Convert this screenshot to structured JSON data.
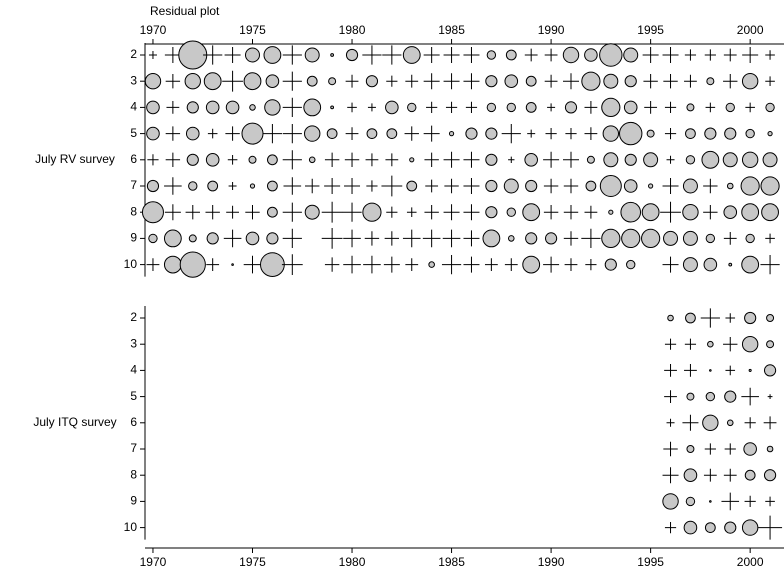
{
  "chart_data": {
    "type": "bubble",
    "title": "Residual plot",
    "xlim": [
      1969.6,
      2001.7
    ],
    "xticks": [
      1970,
      1975,
      1980,
      1985,
      1990,
      1995,
      2000
    ],
    "positive_color": "#c8c8c8",
    "panels": [
      {
        "label": "July RV survey",
        "categories": [
          2,
          3,
          4,
          5,
          6,
          7,
          8,
          9,
          10
        ],
        "x": [
          1970,
          1971,
          1972,
          1973,
          1974,
          1975,
          1976,
          1977,
          1978,
          1979,
          1980,
          1981,
          1982,
          1983,
          1984,
          1985,
          1986,
          1987,
          1988,
          1989,
          1990,
          1991,
          1992,
          1993,
          1994,
          1995,
          1996,
          1997,
          1998,
          1999,
          2000,
          2001
        ],
        "values": [
          [
            -0.5,
            -1,
            2,
            -1.2,
            -1,
            1,
            1.2,
            -1.2,
            1,
            0.2,
            0.8,
            -1.2,
            -1.2,
            1.2,
            -1,
            -1,
            -1,
            0.6,
            0.7,
            -0.8,
            -0.8,
            1.1,
            0.9,
            1.6,
            1,
            -1,
            -1,
            -0.7,
            -0.7,
            -0.8,
            -1,
            -0.6
          ],
          [
            1.1,
            -0.9,
            1.1,
            1.2,
            -1.3,
            1.2,
            0.9,
            -1.2,
            0.7,
            0.5,
            -0.8,
            0.8,
            -0.7,
            -0.8,
            -1,
            -1,
            -1,
            0.8,
            0.9,
            0.7,
            -0.8,
            -1,
            1.3,
            1,
            0.8,
            -0.9,
            -0.9,
            -0.8,
            0.5,
            -0.9,
            1.1,
            -0.6
          ],
          [
            0.9,
            -0.8,
            0.8,
            0.9,
            0.9,
            0.4,
            1.1,
            -1.2,
            1.2,
            0.2,
            -0.6,
            -0.5,
            0.9,
            0.6,
            -0.7,
            -0.7,
            -0.7,
            0.6,
            0.6,
            0.7,
            -0.5,
            0.8,
            -0.8,
            1.3,
            0.9,
            -0.8,
            -0.7,
            0.5,
            -0.6,
            0.6,
            -0.6,
            0.6
          ],
          [
            0.9,
            -0.9,
            0.9,
            -0.6,
            -0.9,
            1.5,
            -1.2,
            -1.2,
            1.1,
            0.7,
            -0.8,
            0.7,
            0.7,
            -0.9,
            -1,
            0.3,
            0.8,
            0.8,
            -1.2,
            -0.5,
            -0.7,
            -0.7,
            -0.8,
            1.1,
            1.6,
            0.5,
            -0.7,
            0.7,
            0.8,
            0.8,
            0.6,
            0.3
          ],
          [
            -0.7,
            -0.9,
            0.8,
            0.9,
            -0.6,
            0.5,
            0.7,
            -1.2,
            0.4,
            -0.9,
            -0.9,
            -0.8,
            -0.8,
            0.3,
            -0.9,
            -1,
            -1,
            0.8,
            -0.4,
            0.9,
            -1,
            -1,
            0.5,
            1,
            0.8,
            1,
            -0.5,
            0.6,
            1.2,
            1,
            1.1,
            1
          ],
          [
            0.8,
            -1.1,
            0.6,
            0.7,
            -0.5,
            0.3,
            0.7,
            -1.1,
            -0.9,
            -1,
            -1,
            -0.7,
            -1.3,
            0.7,
            -0.8,
            -0.9,
            -1,
            0.8,
            1,
            0.8,
            -0.9,
            -0.9,
            0.7,
            1.5,
            0.9,
            0.3,
            -1,
            1,
            -0.9,
            0.4,
            1.3,
            1.3
          ],
          [
            1.5,
            -1,
            -0.9,
            -0.9,
            -0.8,
            -0.9,
            0.7,
            -1.2,
            1,
            -1.3,
            -1.2,
            1.3,
            -0.7,
            -0.6,
            -0.9,
            -1,
            -1,
            0.8,
            0.6,
            1.2,
            -0.9,
            -0.9,
            -0.8,
            0.3,
            1.4,
            1.2,
            -1.3,
            1.1,
            -0.9,
            0.9,
            1.2,
            1.2
          ],
          [
            0.6,
            1.2,
            0.5,
            0.8,
            -1.1,
            0.9,
            0.8,
            -1.2,
            null,
            -1.3,
            -1.1,
            -0.9,
            -0.9,
            -1.1,
            -1.1,
            -1.1,
            -1,
            1.2,
            0.4,
            0.8,
            0.8,
            -0.9,
            -1.2,
            1.3,
            1.3,
            1.3,
            1,
            1,
            0.6,
            -0.8,
            0.6,
            -0.6
          ],
          [
            -0.8,
            1.2,
            1.8,
            -0.8,
            0.1,
            -1.1,
            1.7,
            -1.3,
            null,
            -0.9,
            -1.1,
            -1.1,
            -1,
            -0.8,
            0.4,
            -1.2,
            -1,
            -0.8,
            -0.8,
            1.2,
            -1,
            -0.8,
            -0.7,
            0.8,
            0.6,
            null,
            -1,
            1,
            0.9,
            0.2,
            1.2,
            -1.2
          ]
        ]
      },
      {
        "label": "July ITQ survey",
        "categories": [
          2,
          3,
          4,
          5,
          6,
          7,
          8,
          9,
          10
        ],
        "x": [
          1996,
          1997,
          1998,
          1999,
          2000,
          2001
        ],
        "values": [
          [
            0.4,
            0.7,
            -1.2,
            -0.6,
            0.8,
            0.5
          ],
          [
            -0.7,
            -0.7,
            0.4,
            -0.9,
            1.1,
            0.5
          ],
          [
            -0.8,
            -0.8,
            0.1,
            -0.6,
            0.15,
            0.8
          ],
          [
            -0.8,
            0.5,
            0.6,
            0.8,
            -1.1,
            -0.3
          ],
          [
            -0.5,
            -1,
            1.1,
            0.4,
            -0.7,
            -0.8
          ],
          [
            -0.9,
            0.5,
            -0.7,
            -0.7,
            0.9,
            0.4
          ],
          [
            -1,
            0.9,
            -0.8,
            -0.8,
            0.7,
            0.8
          ],
          [
            1.1,
            0.6,
            0.1,
            -1.1,
            -0.7,
            -0.6
          ],
          [
            -0.7,
            0.9,
            0.7,
            0.8,
            1.1,
            -1.5
          ]
        ]
      }
    ]
  }
}
